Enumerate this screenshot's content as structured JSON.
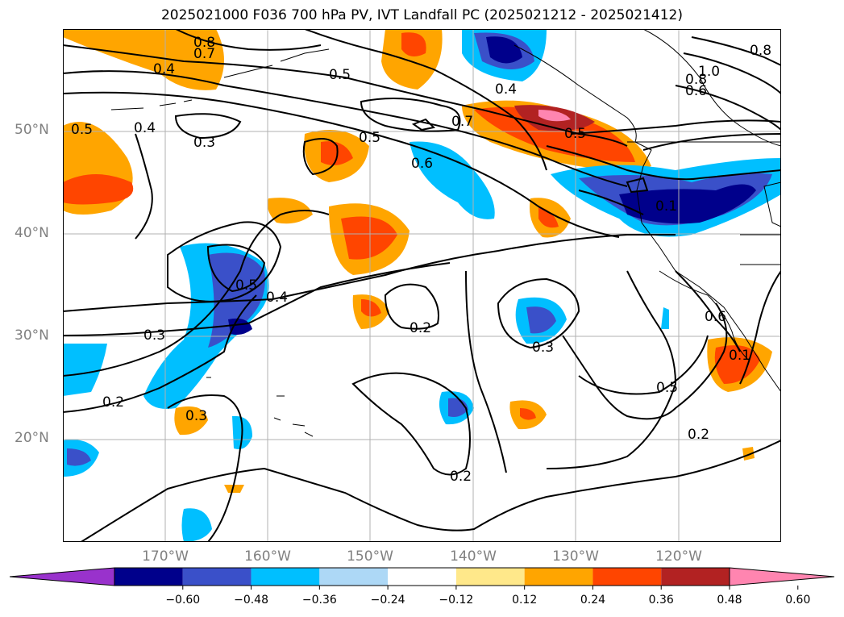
{
  "title": "2025021000 F036 700 hPa PV, IVT Landfall PC (2025021212 - 2025021412)",
  "map": {
    "projection": "PlateCarree",
    "lon_range": [
      -180,
      -110
    ],
    "lat_range": [
      10,
      60
    ],
    "lat_ticks": [
      "20°N",
      "30°N",
      "40°N",
      "50°N"
    ],
    "lon_ticks": [
      "170°W",
      "160°W",
      "150°W",
      "140°W",
      "130°W",
      "120°W"
    ],
    "gridlines": true,
    "filled_field": "IVT Landfall PC",
    "contour_field": "700 hPa PV",
    "contour_labels": [
      "0.8",
      "0.7",
      "0.4",
      "0.4",
      "0.5",
      "0.5",
      "0.3",
      "0.5",
      "0.6",
      "0.7",
      "0.4",
      "0.5",
      "1.0",
      "0.8",
      "0.6",
      "0.8",
      "0.1",
      "0.5",
      "0.4",
      "0.3",
      "0.2",
      "0.2",
      "0.3",
      "0.3",
      "0.6",
      "0.1",
      "0.5",
      "0.2",
      "0.2"
    ]
  },
  "colorbar": {
    "levels": [
      "-0.60",
      "-0.48",
      "-0.36",
      "-0.24",
      "-0.12",
      "0.12",
      "0.24",
      "0.36",
      "0.48",
      "0.60"
    ],
    "colors": [
      "#9932cc",
      "#00008b",
      "#3a50c9",
      "#00bfff",
      "#add8f6",
      "#ffffff",
      "#ffe88a",
      "#ffa500",
      "#ff4500",
      "#b22222",
      "#ff85b0"
    ],
    "extend": "both"
  }
}
